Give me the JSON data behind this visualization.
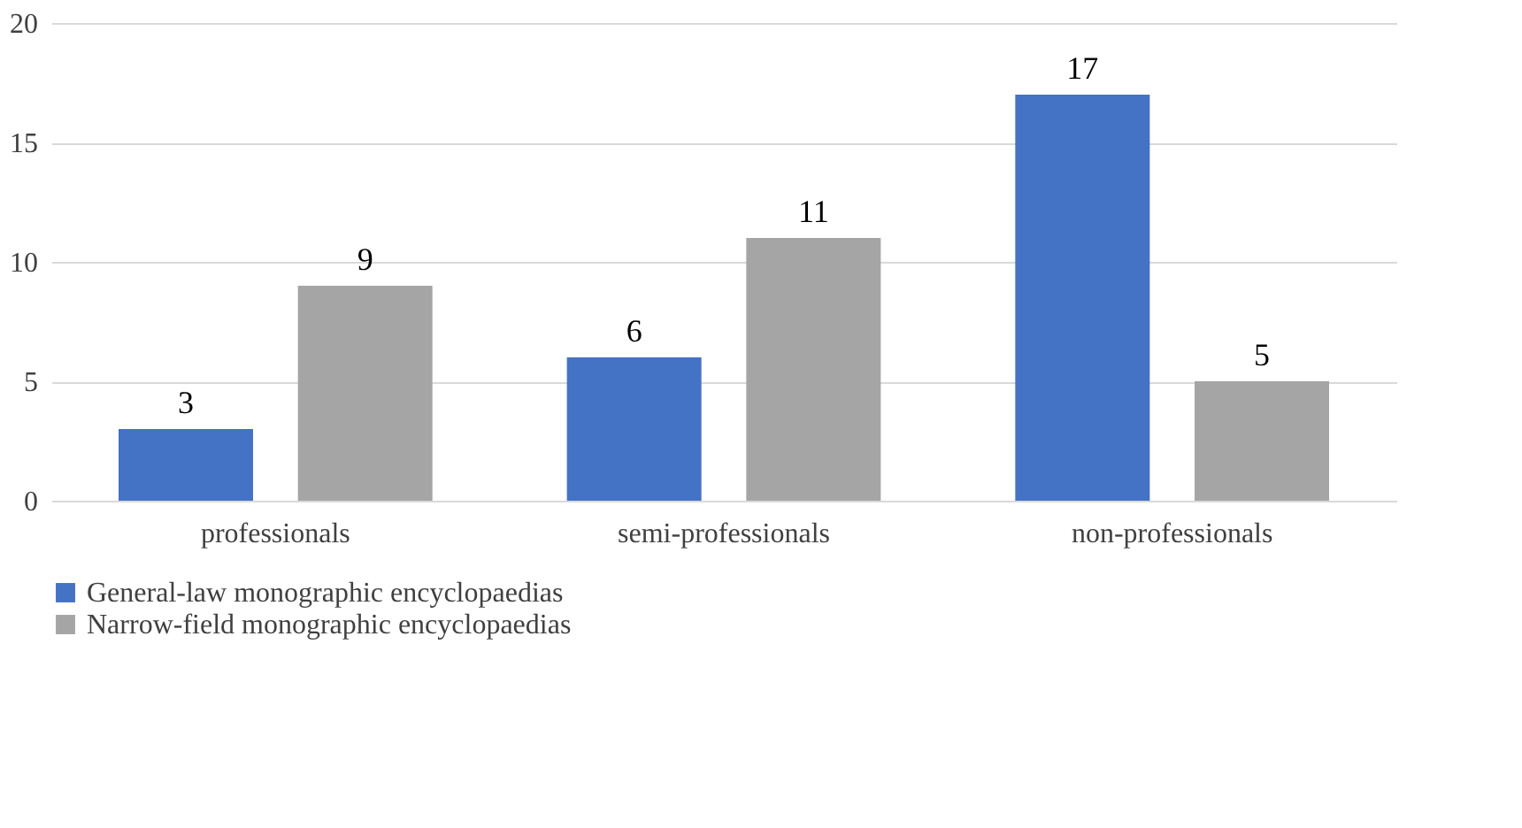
{
  "chart_data": {
    "type": "bar",
    "categories": [
      "professionals",
      "semi-professionals",
      "non-professionals"
    ],
    "series": [
      {
        "name": "General-law monographic encyclopaedias",
        "color": "#4472c4",
        "values": [
          3,
          6,
          17
        ]
      },
      {
        "name": "Narrow-field monographic encyclopaedias",
        "color": "#a5a5a5",
        "values": [
          9,
          11,
          5
        ]
      }
    ],
    "ylim": [
      0,
      20
    ],
    "yticks": [
      0,
      5,
      10,
      15,
      20
    ],
    "grid": "y",
    "legend": "bottom",
    "data_labels": true
  }
}
